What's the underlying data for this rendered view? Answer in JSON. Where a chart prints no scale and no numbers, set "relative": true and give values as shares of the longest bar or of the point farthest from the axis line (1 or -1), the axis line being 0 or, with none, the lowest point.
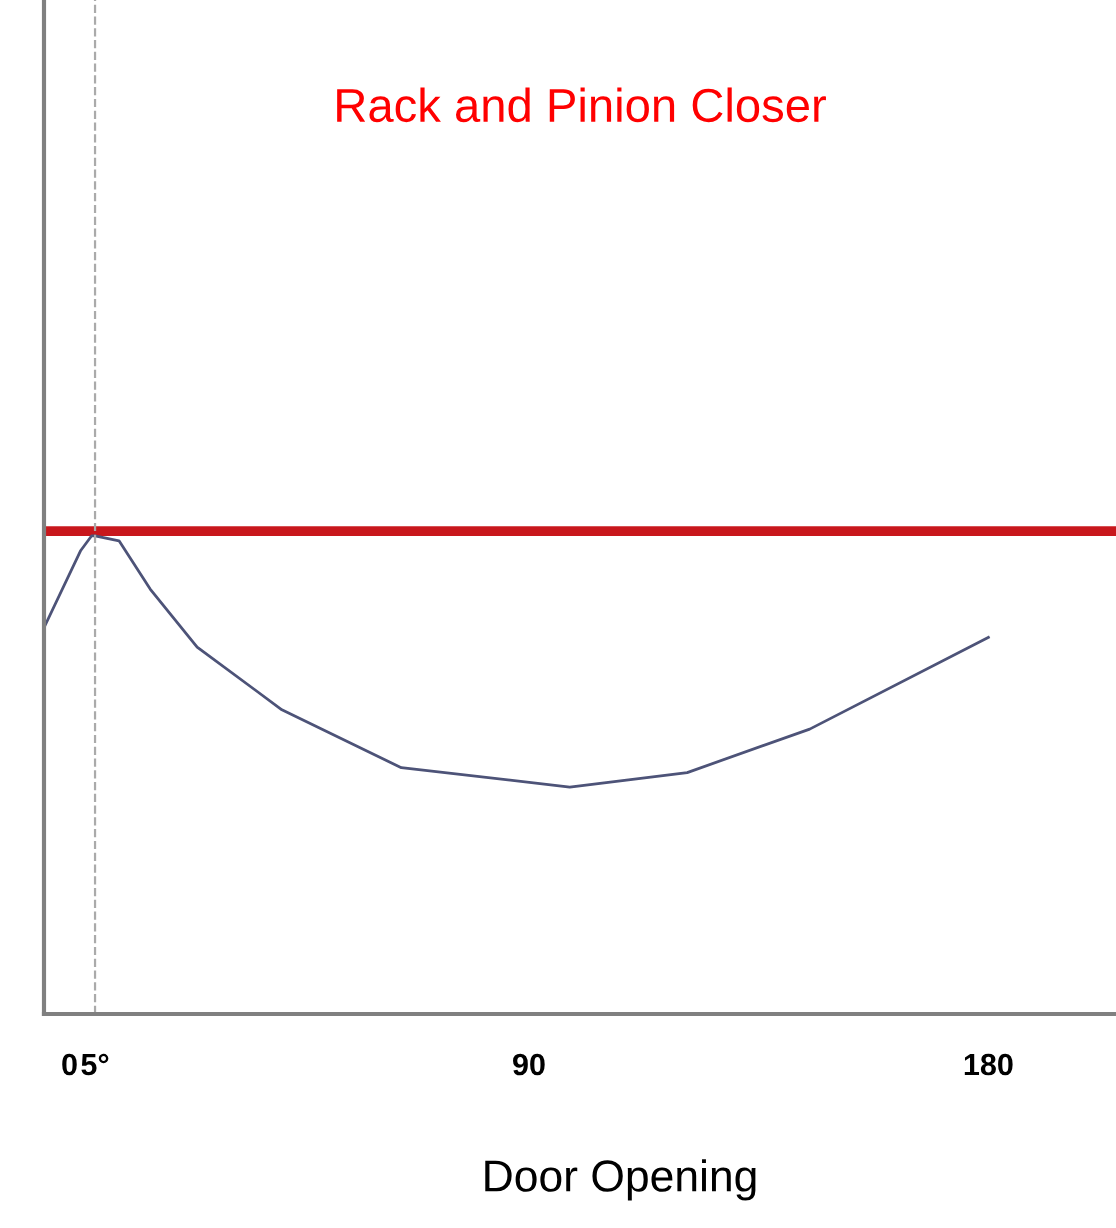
{
  "chart_data": {
    "type": "line",
    "title": "Rack and Pinion Closer",
    "xlabel": "Door Opening",
    "relative": true,
    "xlim": [
      -5,
      205
    ],
    "xticks": [
      0,
      {
        "value": 5,
        "label": "5°"
      },
      90,
      180
    ],
    "tick_labels": "x",
    "grid": false,
    "marker": "none",
    "series": [
      {
        "color": "#c8171c",
        "x": [
          -5,
          205
        ],
        "values": [
          1,
          1
        ]
      },
      {
        "color": "#4d5378",
        "x": [
          -5,
          2.2,
          4.3,
          5,
          9.7,
          15.8,
          25,
          41.6,
          65,
          98,
          121,
          145,
          180
        ],
        "values": [
          0.8,
          0.96,
          0.99,
          0.99,
          0.98,
          0.88,
          0.76,
          0.63,
          0.51,
          0.47,
          0.5,
          0.59,
          0.78
        ]
      }
    ],
    "ref_lines": [
      {
        "axis": "x",
        "value": 5,
        "color": "#aaaaaa",
        "line_style": "dashed"
      }
    ]
  }
}
